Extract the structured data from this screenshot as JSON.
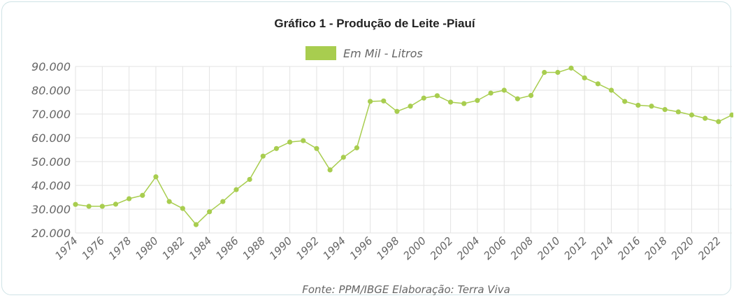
{
  "chart_data": {
    "type": "line",
    "title": "Gráfico 1 - Produção de Leite -Piauí",
    "source": "Fonte: PPM/IBGE Elaboração: Terra Viva",
    "series": [
      {
        "name": "Em Mil - Litros",
        "color": "#a8cd4f",
        "values": [
          32000,
          31200,
          31200,
          32100,
          34400,
          35800,
          43600,
          33200,
          30300,
          23500,
          28900,
          33200,
          38200,
          42500,
          52300,
          55500,
          58200,
          58800,
          55500,
          46500,
          51800,
          55800,
          75300,
          75500,
          71100,
          73300,
          76700,
          77700,
          75000,
          74400,
          75700,
          78800,
          80000,
          76400,
          77800,
          87500,
          87500,
          89300,
          85200,
          82700,
          80000,
          75300,
          73700,
          73300,
          71900,
          70900,
          69600,
          68200,
          66800,
          69600
        ]
      }
    ],
    "x": [
      1974,
      1975,
      1976,
      1977,
      1978,
      1979,
      1980,
      1981,
      1982,
      1983,
      1984,
      1985,
      1986,
      1987,
      1988,
      1989,
      1990,
      1991,
      1992,
      1993,
      1994,
      1995,
      1996,
      1997,
      1998,
      1999,
      2000,
      2001,
      2002,
      2003,
      2004,
      2005,
      2006,
      2007,
      2008,
      2009,
      2010,
      2011,
      2012,
      2013,
      2014,
      2015,
      2016,
      2017,
      2018,
      2019,
      2020,
      2021,
      2022,
      2023
    ],
    "xtick_labels": [
      "1974",
      "1976",
      "1978",
      "1980",
      "1982",
      "1984",
      "1986",
      "1988",
      "1990",
      "1992",
      "1994",
      "1996",
      "1998",
      "2000",
      "2002",
      "2004",
      "2006",
      "2008",
      "2010",
      "2012",
      "2014",
      "2016",
      "2018",
      "2020",
      "2022"
    ],
    "ytick_labels": [
      "20.000",
      "30.000",
      "40.000",
      "50.000",
      "60.000",
      "70.000",
      "80.000",
      "90.000"
    ],
    "ylim": [
      20000,
      90000
    ],
    "grid": true,
    "legend_position": "top-center"
  }
}
